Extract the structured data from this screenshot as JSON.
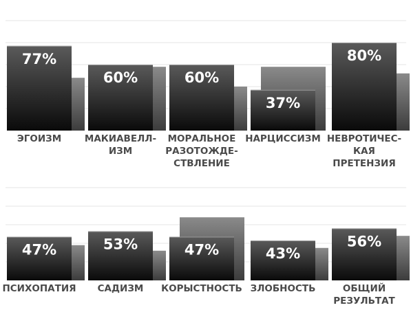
{
  "chart_data": [
    {
      "type": "bar",
      "categories": [
        "ЭГОИЗМ",
        "МАКИАВЕЛЛ-\nИЗМ",
        "МОРАЛЬНОЕ\nРАЗОТОЖДЕ-\nСТВЛЕНИЕ",
        "НАРЦИССИЗМ",
        "НЕВРОТИЧЕС-\nКАЯ ПРЕТЕНЗИЯ"
      ],
      "series": [
        {
          "values": [
            77,
            60,
            60,
            37,
            80
          ],
          "labels": [
            "77%",
            "60%",
            "60%",
            "37%",
            "80%"
          ]
        },
        {
          "values": [
            48,
            58,
            40,
            58,
            52
          ]
        }
      ],
      "ylim": [
        0,
        100
      ],
      "grid": true
    },
    {
      "type": "bar",
      "categories": [
        "ПСИХОПАТИЯ",
        "САДИЗМ",
        "КОРЫСТНОСТЬ",
        "ЗЛОБНОСТЬ",
        "ОБЩИЙ\nРЕЗУЛЬТАТ"
      ],
      "series": [
        {
          "values": [
            47,
            53,
            47,
            43,
            56
          ],
          "labels": [
            "47%",
            "53%",
            "47%",
            "43%",
            "56%"
          ]
        },
        {
          "values": [
            38,
            32,
            68,
            35,
            48
          ]
        }
      ],
      "ylim": [
        0,
        100
      ],
      "grid": true
    }
  ],
  "colors": {
    "primary_top": "#5a5a5a",
    "primary_bottom": "#0a0a0a",
    "secondary_top": "#8a8a8a",
    "secondary_bottom": "#3c3c3c",
    "grid": "#e6e6e6",
    "label": "#4a4a4a",
    "value_text": "#ffffff"
  }
}
